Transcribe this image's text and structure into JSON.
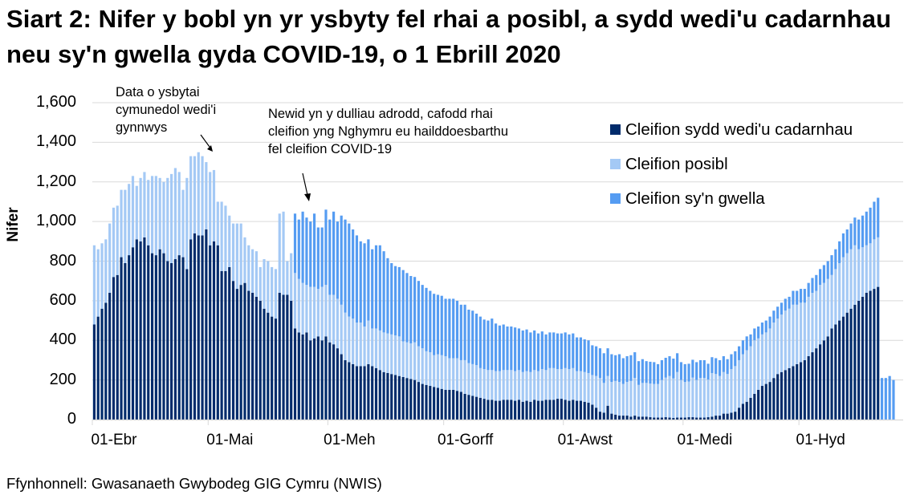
{
  "title": "Siart 2: Nifer y bobl yn yr ysbyty fel rhai a posibl, a sydd wedi'u cadarnhau neu sy'n gwella gyda COVID-19, o 1 Ebrill 2020",
  "source": "Ffynhonnell: Gwasanaeth Gwybodeg GIG Cymru (NWIS)",
  "colors": {
    "confirmed": "#002b6b",
    "suspected": "#a4c9f5",
    "recovering": "#559cf2",
    "gridline": "#d9d9d9",
    "axis": "#d9d9d9"
  },
  "annotations": [
    {
      "text_lines": [
        "Data o ysbytai",
        "cymunedol wedi'i",
        "gynnwys"
      ]
    },
    {
      "text_lines": [
        "Newid yn y dulliau adrodd, cafodd rhai",
        "cleifion yng Nghymru eu hailddoesbarthu",
        "fel cleifion COVID-19"
      ]
    }
  ],
  "chart_data": {
    "type": "bar",
    "stacked": true,
    "title": "Siart 2: Nifer y bobl yn yr ysbyty fel rhai a posibl, a sydd wedi'u cadarnhau neu sy'n gwella gyda COVID-19, o 1 Ebrill 2020",
    "xlabel": "",
    "ylabel": "Nifer",
    "ylim": [
      0,
      1600
    ],
    "yticks": [
      0,
      200,
      400,
      600,
      800,
      1000,
      1200,
      1400,
      1600
    ],
    "ytick_labels": [
      "0",
      "200",
      "400",
      "600",
      "800",
      "1,000",
      "1,200",
      "1,400",
      "1,600"
    ],
    "xtick_labels": [
      "01-Ebr",
      "01-Mai",
      "01-Meh",
      "01-Gorff",
      "01-Awst",
      "01-Medi",
      "01-Hyd"
    ],
    "xtick_day_index": [
      0,
      30,
      61,
      91,
      122,
      153,
      183
    ],
    "grid": true,
    "legend_position": "upper right",
    "x_start": "01-Ebr",
    "n_days": 210,
    "series": [
      {
        "name": "Cleifion sydd wedi'u cadarnhau",
        "color": "#002b6b",
        "values": [
          480,
          520,
          560,
          590,
          640,
          720,
          730,
          820,
          790,
          830,
          870,
          910,
          900,
          920,
          880,
          840,
          830,
          860,
          840,
          800,
          790,
          810,
          830,
          820,
          760,
          910,
          940,
          930,
          930,
          960,
          880,
          900,
          880,
          750,
          750,
          770,
          700,
          660,
          680,
          690,
          650,
          640,
          620,
          600,
          560,
          540,
          520,
          510,
          640,
          630,
          630,
          600,
          460,
          440,
          430,
          440,
          400,
          410,
          420,
          400,
          420,
          390,
          380,
          360,
          330,
          300,
          290,
          280,
          270,
          270,
          270,
          280,
          270,
          260,
          250,
          240,
          235,
          230,
          225,
          220,
          215,
          210,
          205,
          200,
          190,
          180,
          175,
          170,
          165,
          160,
          155,
          150,
          150,
          150,
          145,
          140,
          130,
          125,
          120,
          115,
          110,
          105,
          100,
          100,
          95,
          95,
          100,
          100,
          100,
          95,
          100,
          90,
          95,
          90,
          100,
          95,
          95,
          100,
          100,
          100,
          105,
          105,
          100,
          95,
          100,
          95,
          95,
          90,
          85,
          75,
          60,
          40,
          35,
          70,
          30,
          25,
          20,
          20,
          20,
          15,
          20,
          15,
          15,
          15,
          12,
          10,
          10,
          10,
          12,
          10,
          8,
          10,
          10,
          10,
          12,
          12,
          10,
          10,
          10,
          12,
          15,
          20,
          20,
          30,
          30,
          35,
          40,
          60,
          80,
          90,
          110,
          130,
          150,
          170,
          180,
          190,
          210,
          230,
          240,
          250,
          260,
          270,
          280,
          290,
          300,
          320,
          340,
          360,
          380,
          400,
          420,
          460,
          480,
          500,
          520,
          540,
          560,
          580,
          600,
          620,
          640,
          650,
          660,
          670
        ]
      },
      {
        "name": "Cleifion posibl",
        "color": "#a4c9f5",
        "values": [
          400,
          340,
          330,
          320,
          350,
          350,
          350,
          340,
          370,
          360,
          360,
          270,
          320,
          330,
          330,
          390,
          400,
          360,
          360,
          420,
          450,
          460,
          420,
          340,
          460,
          420,
          390,
          420,
          400,
          340,
          370,
          360,
          220,
          350,
          330,
          260,
          290,
          330,
          310,
          230,
          230,
          220,
          230,
          170,
          250,
          260,
          250,
          250,
          400,
          420,
          170,
          240,
          280,
          270,
          260,
          240,
          270,
          260,
          240,
          270,
          260,
          240,
          250,
          250,
          250,
          240,
          230,
          230,
          220,
          220,
          200,
          220,
          190,
          200,
          200,
          200,
          200,
          200,
          200,
          200,
          180,
          180,
          180,
          190,
          180,
          180,
          170,
          170,
          160,
          170,
          170,
          170,
          160,
          160,
          165,
          160,
          170,
          160,
          160,
          160,
          150,
          150,
          150,
          150,
          150,
          150,
          150,
          150,
          150,
          150,
          150,
          150,
          150,
          150,
          150,
          150,
          160,
          150,
          160,
          160,
          150,
          150,
          160,
          160,
          160,
          150,
          150,
          150,
          150,
          150,
          160,
          170,
          150,
          150,
          160,
          170,
          170,
          160,
          170,
          180,
          190,
          160,
          170,
          170,
          170,
          170,
          170,
          190,
          200,
          210,
          200,
          230,
          190,
          180,
          180,
          200,
          190,
          200,
          200,
          190,
          220,
          210,
          200,
          210,
          200,
          220,
          230,
          240,
          250,
          260,
          260,
          270,
          260,
          260,
          260,
          270,
          280,
          280,
          290,
          300,
          300,
          310,
          300,
          300,
          290,
          300,
          300,
          290,
          300,
          290,
          290,
          270,
          280,
          290,
          300,
          300,
          300,
          300,
          260,
          250,
          240,
          240,
          250,
          250
        ]
      },
      {
        "name": "Cleifion sy'n gwella",
        "color": "#559cf2",
        "values": [
          0,
          0,
          0,
          0,
          0,
          0,
          0,
          0,
          0,
          0,
          0,
          0,
          0,
          0,
          0,
          0,
          0,
          0,
          0,
          0,
          0,
          0,
          0,
          0,
          0,
          0,
          0,
          0,
          0,
          0,
          0,
          0,
          0,
          0,
          0,
          0,
          0,
          0,
          0,
          0,
          0,
          0,
          0,
          0,
          0,
          0,
          0,
          0,
          0,
          0,
          0,
          0,
          300,
          300,
          360,
          340,
          330,
          370,
          310,
          300,
          380,
          380,
          420,
          390,
          450,
          470,
          470,
          450,
          440,
          410,
          420,
          410,
          400,
          420,
          430,
          410,
          380,
          360,
          350,
          350,
          360,
          350,
          340,
          330,
          330,
          320,
          320,
          310,
          310,
          300,
          300,
          290,
          300,
          300,
          290,
          280,
          280,
          270,
          270,
          260,
          260,
          250,
          250,
          260,
          240,
          230,
          230,
          220,
          220,
          220,
          210,
          210,
          210,
          200,
          200,
          190,
          190,
          180,
          180,
          180,
          180,
          180,
          180,
          175,
          175,
          170,
          170,
          165,
          165,
          150,
          150,
          150,
          150,
          140,
          140,
          130,
          140,
          130,
          130,
          130,
          130,
          120,
          120,
          110,
          110,
          110,
          100,
          100,
          100,
          100,
          100,
          95,
          90,
          90,
          90,
          90,
          90,
          90,
          90,
          80,
          80,
          80,
          80,
          80,
          75,
          75,
          75,
          70,
          70,
          70,
          60,
          60,
          60,
          60,
          60,
          60,
          60,
          60,
          60,
          60,
          60,
          70,
          70,
          70,
          70,
          70,
          75,
          80,
          80,
          90,
          90,
          100,
          100,
          110,
          120,
          120,
          130,
          140,
          150,
          160,
          170,
          180,
          190,
          200,
          210,
          210,
          220,
          200
        ]
      }
    ]
  }
}
